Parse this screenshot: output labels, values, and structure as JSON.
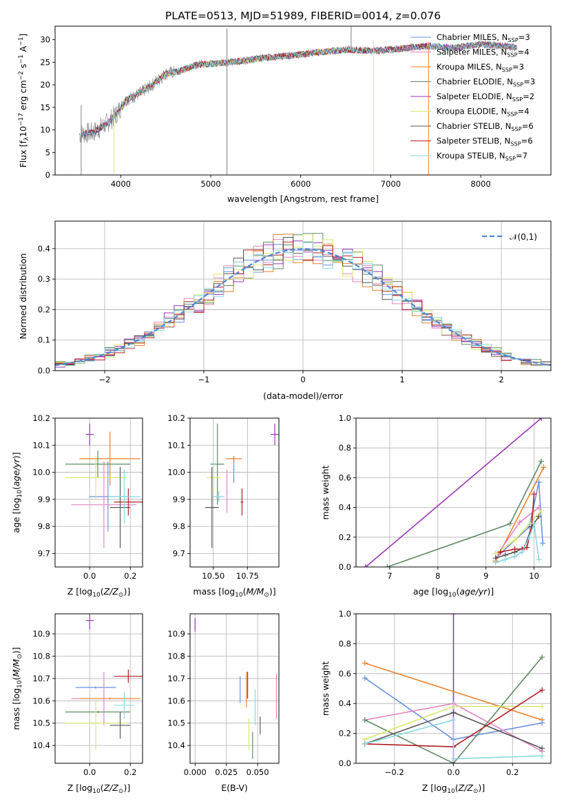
{
  "figure_title": "PLATE=0513, MJD=51989, FIBERID=0014, z=0.076",
  "colors": {
    "Chabrier MILES": "#6a8fdc",
    "Salpeter MILES": "#e683c0",
    "Kroupa MILES": "#e8802a",
    "Chabrier ELODIE": "#5d8a65",
    "Salpeter ELODIE": "#9b35b5",
    "Kroupa ELODIE": "#d9e86a",
    "Chabrier STELIB": "#555555",
    "Salpeter STELIB": "#b01c24",
    "Kroupa STELIB": "#86d8e0"
  },
  "chart_data": [
    {
      "id": "spectrum",
      "type": "line",
      "title": "PLATE=0513, MJD=51989, FIBERID=0014, z=0.076",
      "xlabel": "wavelength [Angstrom, rest frame]",
      "ylabel": "Flux [f_λ10^-17 erg cm^-2 s^-1 A^-1]",
      "xlim": [
        3270,
        8780
      ],
      "ylim": [
        0,
        33
      ],
      "xticks": [
        4000,
        5000,
        6000,
        7000,
        8000
      ],
      "yticks": [
        0,
        5,
        10,
        15,
        20,
        25,
        30
      ],
      "grid": false,
      "legend_position": "upper right",
      "legend": [
        "Chabrier MILES, N_SSP=3",
        "Salpeter MILES, N_SSP=4",
        "Kroupa MILES, N_SSP=3",
        "Chabrier ELODIE, N_SSP=3",
        "Salpeter ELODIE, N_SSP=2",
        "Kroupa ELODIE, N_SSP=4",
        "Chabrier STELIB, N_SSP=6",
        "Salpeter STELIB, N_SSP=6",
        "Kroupa STELIB, N_SSP=7"
      ],
      "data_color": "#7f7f7f",
      "continuum": [
        [
          3540,
          9.0
        ],
        [
          3700,
          9.5
        ],
        [
          3850,
          11.5
        ],
        [
          3950,
          13.5
        ],
        [
          4050,
          16.5
        ],
        [
          4200,
          18.0
        ],
        [
          4350,
          20.0
        ],
        [
          4500,
          22.5
        ],
        [
          4650,
          23.0
        ],
        [
          4850,
          24.5
        ],
        [
          5100,
          24.8
        ],
        [
          5300,
          25.2
        ],
        [
          5600,
          26.0
        ],
        [
          5900,
          26.5
        ],
        [
          6200,
          27.2
        ],
        [
          6500,
          27.8
        ],
        [
          6800,
          27.5
        ],
        [
          7100,
          28.0
        ],
        [
          7400,
          28.6
        ],
        [
          7700,
          28.2
        ],
        [
          8000,
          29.0
        ],
        [
          8300,
          28.6
        ],
        [
          8400,
          28.2
        ]
      ],
      "spikes": [
        {
          "x": 3560,
          "y_low": 0.0,
          "y_high": 15.5
        },
        {
          "x": 5180,
          "y_low": 0.0,
          "y_high": 32.5
        },
        {
          "x": 6810,
          "y_low": 0.0,
          "y_high": 30.0
        },
        {
          "x": 7420,
          "y_low": 0.0,
          "y_high": 29.5
        },
        {
          "x": 3925,
          "y_low": 0.0,
          "y_high": 14.0
        },
        {
          "x": 6560,
          "y_low": 27.0,
          "y_high": 33.0
        }
      ]
    },
    {
      "id": "residuals",
      "type": "histogram",
      "xlabel": "(data-model)/error",
      "ylabel": "Normed distribution",
      "xlim": [
        -2.5,
        2.5
      ],
      "ylim": [
        0,
        0.49
      ],
      "xticks": [
        -2,
        -1,
        0,
        1,
        2
      ],
      "yticks": [
        0.0,
        0.1,
        0.2,
        0.3,
        0.4
      ],
      "grid": true,
      "legend": [
        "𝒩(0,1)"
      ],
      "legend_position": "upper right",
      "bin_width": 0.1,
      "bin_start": -2.5,
      "reference_curve": {
        "name": "𝒩(0,1)",
        "color": "#4c86d6",
        "style": "dashed"
      }
    },
    {
      "id": "age-vs-Z",
      "type": "errorbar",
      "xlabel": "Z [log10(Z/Z⊙)]",
      "ylabel": "age  [log10(age/yr)]",
      "xlim": [
        -0.17,
        0.26
      ],
      "ylim": [
        9.65,
        10.2
      ],
      "xticks": [
        0.0,
        0.2
      ],
      "yticks": [
        9.7,
        9.8,
        9.9,
        10.0,
        10.1,
        10.2
      ],
      "grid": true,
      "points": [
        {
          "series": "Chabrier MILES",
          "x": 0.09,
          "y": 9.91,
          "xerr": 0.09,
          "yerr": 0.13
        },
        {
          "series": "Salpeter MILES",
          "x": 0.07,
          "y": 9.88,
          "xerr": 0.16,
          "yerr": 0.16
        },
        {
          "series": "Kroupa MILES",
          "x": 0.1,
          "y": 10.05,
          "xerr": 0.15,
          "yerr": 0.1
        },
        {
          "series": "Chabrier ELODIE",
          "x": 0.04,
          "y": 10.03,
          "xerr": 0.16,
          "yerr": 0.05
        },
        {
          "series": "Salpeter ELODIE",
          "x": 0.0,
          "y": 10.14,
          "xerr": 0.02,
          "yerr": 0.04
        },
        {
          "series": "Kroupa ELODIE",
          "x": 0.03,
          "y": 9.98,
          "xerr": 0.15,
          "yerr": 0.08
        },
        {
          "series": "Chabrier STELIB",
          "x": 0.15,
          "y": 9.87,
          "xerr": 0.05,
          "yerr": 0.15
        },
        {
          "series": "Salpeter STELIB",
          "x": 0.19,
          "y": 9.89,
          "xerr": 0.07,
          "yerr": 0.05
        },
        {
          "series": "Kroupa STELIB",
          "x": 0.17,
          "y": 9.91,
          "xerr": 0.08,
          "yerr": 0.1
        }
      ]
    },
    {
      "id": "age-vs-mass",
      "type": "errorbar",
      "xlabel": "mass [log10(M/M⊙)]",
      "ylabel": "",
      "xlim": [
        10.33,
        10.98
      ],
      "ylim": [
        9.65,
        10.2
      ],
      "xticks": [
        10.5,
        10.75
      ],
      "yticks": [
        9.7,
        9.8,
        9.9,
        10.0,
        10.1,
        10.2
      ],
      "grid": true,
      "points": [
        {
          "series": "Chabrier MILES",
          "x": 10.65,
          "y": 10.01,
          "xerr": 0.005,
          "yerr": 0.05
        },
        {
          "series": "Salpeter MILES",
          "x": 10.6,
          "y": 9.93,
          "xerr": 0.005,
          "yerr": 0.08
        },
        {
          "series": "Kroupa MILES",
          "x": 10.65,
          "y": 10.05,
          "xerr": 0.06,
          "yerr": 0.01
        },
        {
          "series": "Chabrier ELODIE",
          "x": 10.53,
          "y": 10.03,
          "xerr": 0.05,
          "yerr": 0.15
        },
        {
          "series": "Salpeter ELODIE",
          "x": 10.95,
          "y": 10.14,
          "xerr": 0.03,
          "yerr": 0.04
        },
        {
          "series": "Kroupa ELODIE",
          "x": 10.5,
          "y": 9.98,
          "xerr": 0.05,
          "yerr": 0.05
        },
        {
          "series": "Chabrier STELIB",
          "x": 10.49,
          "y": 9.87,
          "xerr": 0.05,
          "yerr": 0.15
        },
        {
          "series": "Salpeter STELIB",
          "x": 10.71,
          "y": 9.89,
          "xerr": 0.01,
          "yerr": 0.05
        },
        {
          "series": "Kroupa STELIB",
          "x": 10.54,
          "y": 9.91,
          "xerr": 0.04,
          "yerr": 0.02
        }
      ]
    },
    {
      "id": "massweight-vs-age",
      "type": "line",
      "xlabel": "age  [log10(age/yr)]",
      "ylabel": "mass weight",
      "xlim": [
        6.3,
        10.35
      ],
      "ylim": [
        0,
        1
      ],
      "xticks": [
        7,
        8,
        9,
        10
      ],
      "yticks": [
        0.0,
        0.2,
        0.4,
        0.6,
        0.8,
        1.0
      ],
      "grid": true,
      "series": [
        {
          "name": "Salpeter ELODIE",
          "x": [
            6.5,
            10.15
          ],
          "y": [
            0.0,
            1.0
          ]
        },
        {
          "name": "Chabrier ELODIE",
          "x": [
            6.95,
            9.5,
            10.15
          ],
          "y": [
            0.0,
            0.29,
            0.71
          ]
        },
        {
          "name": "Kroupa MILES",
          "x": [
            9.2,
            10.2
          ],
          "y": [
            0.04,
            0.67
          ]
        },
        {
          "name": "Chabrier MILES",
          "x": [
            9.2,
            9.9,
            10.1,
            10.18
          ],
          "y": [
            0.06,
            0.27,
            0.57,
            0.16
          ]
        },
        {
          "name": "Salpeter MILES",
          "x": [
            9.25,
            9.7,
            10.1
          ],
          "y": [
            0.09,
            0.3,
            0.4
          ]
        },
        {
          "name": "Kroupa ELODIE",
          "x": [
            9.2,
            9.6,
            10.15
          ],
          "y": [
            0.09,
            0.18,
            0.38
          ]
        },
        {
          "name": "Chabrier STELIB",
          "x": [
            9.2,
            9.4,
            9.6,
            9.8,
            9.95,
            10.1
          ],
          "y": [
            0.06,
            0.08,
            0.1,
            0.13,
            0.27,
            0.34
          ]
        },
        {
          "name": "Salpeter STELIB",
          "x": [
            9.3,
            9.6,
            9.75,
            9.85,
            9.95,
            10.0
          ],
          "y": [
            0.1,
            0.12,
            0.12,
            0.13,
            0.27,
            0.49
          ]
        },
        {
          "name": "Kroupa STELIB",
          "x": [
            9.2,
            9.4,
            9.6,
            9.75,
            9.9,
            10.0,
            10.1
          ],
          "y": [
            0.03,
            0.05,
            0.07,
            0.1,
            0.2,
            0.29,
            0.05
          ]
        }
      ]
    },
    {
      "id": "mass-vs-Z",
      "type": "errorbar",
      "xlabel": "Z [log10(Z/Z⊙)]",
      "ylabel": "mass [log10(M/M⊙)]",
      "xlim": [
        -0.17,
        0.26
      ],
      "ylim": [
        10.32,
        10.99
      ],
      "xticks": [
        0.0,
        0.2
      ],
      "yticks": [
        10.4,
        10.5,
        10.6,
        10.7,
        10.8,
        10.9
      ],
      "grid": true,
      "points": [
        {
          "series": "Chabrier MILES",
          "x": 0.03,
          "y": 10.66,
          "xerr": 0.1,
          "yerr": 0.005
        },
        {
          "series": "Salpeter MILES",
          "x": 0.07,
          "y": 10.61,
          "xerr": 0.16,
          "yerr": 0.12
        },
        {
          "series": "Kroupa MILES",
          "x": 0.1,
          "y": 10.61,
          "xerr": 0.15,
          "yerr": 0.005
        },
        {
          "series": "Chabrier ELODIE",
          "x": 0.04,
          "y": 10.55,
          "xerr": 0.16,
          "yerr": 0.005
        },
        {
          "series": "Salpeter ELODIE",
          "x": 0.0,
          "y": 10.96,
          "xerr": 0.02,
          "yerr": 0.04
        },
        {
          "series": "Kroupa ELODIE",
          "x": 0.03,
          "y": 10.5,
          "xerr": 0.15,
          "yerr": 0.12
        },
        {
          "series": "Chabrier STELIB",
          "x": 0.15,
          "y": 10.49,
          "xerr": 0.05,
          "yerr": 0.06
        },
        {
          "series": "Salpeter STELIB",
          "x": 0.19,
          "y": 10.71,
          "xerr": 0.07,
          "yerr": 0.03
        },
        {
          "series": "Kroupa STELIB",
          "x": 0.17,
          "y": 10.58,
          "xerr": 0.05,
          "yerr": 0.06
        }
      ]
    },
    {
      "id": "mass-vs-EBV",
      "type": "errorbar",
      "xlabel": "E(B-V)",
      "ylabel": "",
      "xlim": [
        -0.004,
        0.067
      ],
      "ylim": [
        10.32,
        10.99
      ],
      "xticks": [
        0.0,
        0.025,
        0.05
      ],
      "yticks": [
        10.4,
        10.5,
        10.6,
        10.7,
        10.8,
        10.9
      ],
      "grid": true,
      "points": [
        {
          "series": "Chabrier MILES",
          "x": 0.036,
          "y": 10.65,
          "xerr": 0.0,
          "yerr": 0.06
        },
        {
          "series": "Salpeter MILES",
          "x": 0.065,
          "y": 10.62,
          "xerr": 0.0,
          "yerr": 0.1
        },
        {
          "series": "Kroupa MILES",
          "x": 0.041,
          "y": 10.65,
          "xerr": 0.0,
          "yerr": 0.08
        },
        {
          "series": "Chabrier ELODIE",
          "x": 0.046,
          "y": 10.4,
          "xerr": 0.0,
          "yerr": 0.06
        },
        {
          "series": "Salpeter ELODIE",
          "x": 0.0,
          "y": 10.94,
          "xerr": 0.0,
          "yerr": 0.03
        },
        {
          "series": "Kroupa ELODIE",
          "x": 0.043,
          "y": 10.45,
          "xerr": 0.0,
          "yerr": 0.07
        },
        {
          "series": "Chabrier STELIB",
          "x": 0.052,
          "y": 10.49,
          "xerr": 0.0,
          "yerr": 0.04
        },
        {
          "series": "Salpeter STELIB",
          "x": 0.042,
          "y": 10.67,
          "xerr": 0.0,
          "yerr": 0.06
        },
        {
          "series": "Kroupa STELIB",
          "x": 0.048,
          "y": 10.57,
          "xerr": 0.0,
          "yerr": 0.08
        }
      ]
    },
    {
      "id": "massweight-vs-Z",
      "type": "line",
      "xlabel": "Z [log10(Z/Z⊙)]",
      "ylabel": "mass weight",
      "xlim": [
        -0.33,
        0.33
      ],
      "ylim": [
        0,
        1
      ],
      "xticks": [
        -0.2,
        0.0,
        0.2
      ],
      "yticks": [
        0.0,
        0.2,
        0.4,
        0.6,
        0.8,
        1.0
      ],
      "grid": true,
      "series": [
        {
          "name": "Salpeter ELODIE",
          "x": [
            0.0,
            0.0
          ],
          "y": [
            1.0,
            0.0
          ]
        },
        {
          "name": "Kroupa MILES",
          "x": [
            -0.3,
            0.3
          ],
          "y": [
            0.67,
            0.29
          ]
        },
        {
          "name": "Chabrier MILES",
          "x": [
            -0.3,
            0.0,
            0.3
          ],
          "y": [
            0.57,
            0.16,
            0.27
          ]
        },
        {
          "name": "Salpeter MILES",
          "x": [
            -0.3,
            0.0,
            0.3
          ],
          "y": [
            0.29,
            0.4,
            0.08
          ]
        },
        {
          "name": "Chabrier ELODIE",
          "x": [
            -0.3,
            0.0,
            0.3
          ],
          "y": [
            0.29,
            0.0,
            0.71
          ]
        },
        {
          "name": "Kroupa ELODIE",
          "x": [
            -0.3,
            0.0,
            0.3
          ],
          "y": [
            0.16,
            0.38,
            0.38
          ]
        },
        {
          "name": "Chabrier STELIB",
          "x": [
            -0.3,
            0.0,
            0.3
          ],
          "y": [
            0.13,
            0.34,
            0.1
          ]
        },
        {
          "name": "Salpeter STELIB",
          "x": [
            -0.3,
            0.0,
            0.3
          ],
          "y": [
            0.13,
            0.11,
            0.49
          ]
        },
        {
          "name": "Kroupa STELIB",
          "x": [
            -0.3,
            0.0,
            0.0,
            0.3
          ],
          "y": [
            0.13,
            0.29,
            0.03,
            0.05
          ]
        }
      ]
    }
  ]
}
